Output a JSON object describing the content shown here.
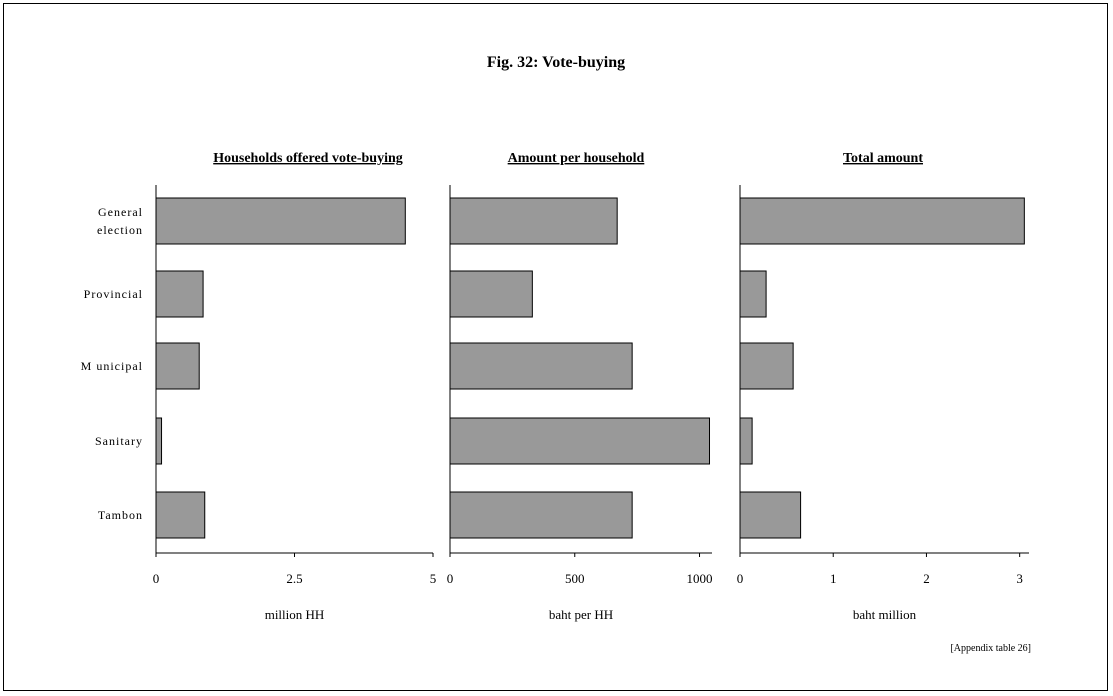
{
  "title": "Fig. 32: Vote-buying",
  "note": "[Appendix table 26]",
  "colors": {
    "bar_fill": "#999999",
    "bar_stroke": "#000000"
  },
  "categories_display": [
    [
      "General",
      "election"
    ],
    [
      "Provincial"
    ],
    [
      "M unicipal"
    ],
    [
      "Sanitary"
    ],
    [
      "Tambon"
    ]
  ],
  "chart_data": [
    {
      "type": "bar",
      "orientation": "horizontal",
      "title": "Households offered vote-buying",
      "categories": [
        "General election",
        "Provincial",
        "Municipal",
        "Sanitary",
        "Tambon"
      ],
      "values": [
        4.5,
        0.85,
        0.78,
        0.1,
        0.88
      ],
      "xlabel": "million HH",
      "xlim": [
        0,
        5
      ],
      "xticks": [
        "0",
        "2.5",
        "5"
      ],
      "xtick_values": [
        0,
        2.5,
        5
      ]
    },
    {
      "type": "bar",
      "orientation": "horizontal",
      "title": "Amount per household",
      "categories": [
        "General election",
        "Provincial",
        "Municipal",
        "Sanitary",
        "Tambon"
      ],
      "values": [
        670,
        330,
        730,
        1040,
        730
      ],
      "xlabel": "baht per HH",
      "xlim": [
        0,
        1050
      ],
      "xticks": [
        "0",
        "500",
        "1000"
      ],
      "xtick_values": [
        0,
        500,
        1000
      ]
    },
    {
      "type": "bar",
      "orientation": "horizontal",
      "title": "Total amount",
      "categories": [
        "General election",
        "Provincial",
        "Municipal",
        "Sanitary",
        "Tambon"
      ],
      "values": [
        3.05,
        0.28,
        0.57,
        0.13,
        0.65
      ],
      "xlabel": "baht million",
      "xlim": [
        0,
        3.1
      ],
      "xticks": [
        "0",
        "1",
        "2",
        "3"
      ],
      "xtick_values": [
        0,
        1,
        2,
        3
      ]
    }
  ]
}
